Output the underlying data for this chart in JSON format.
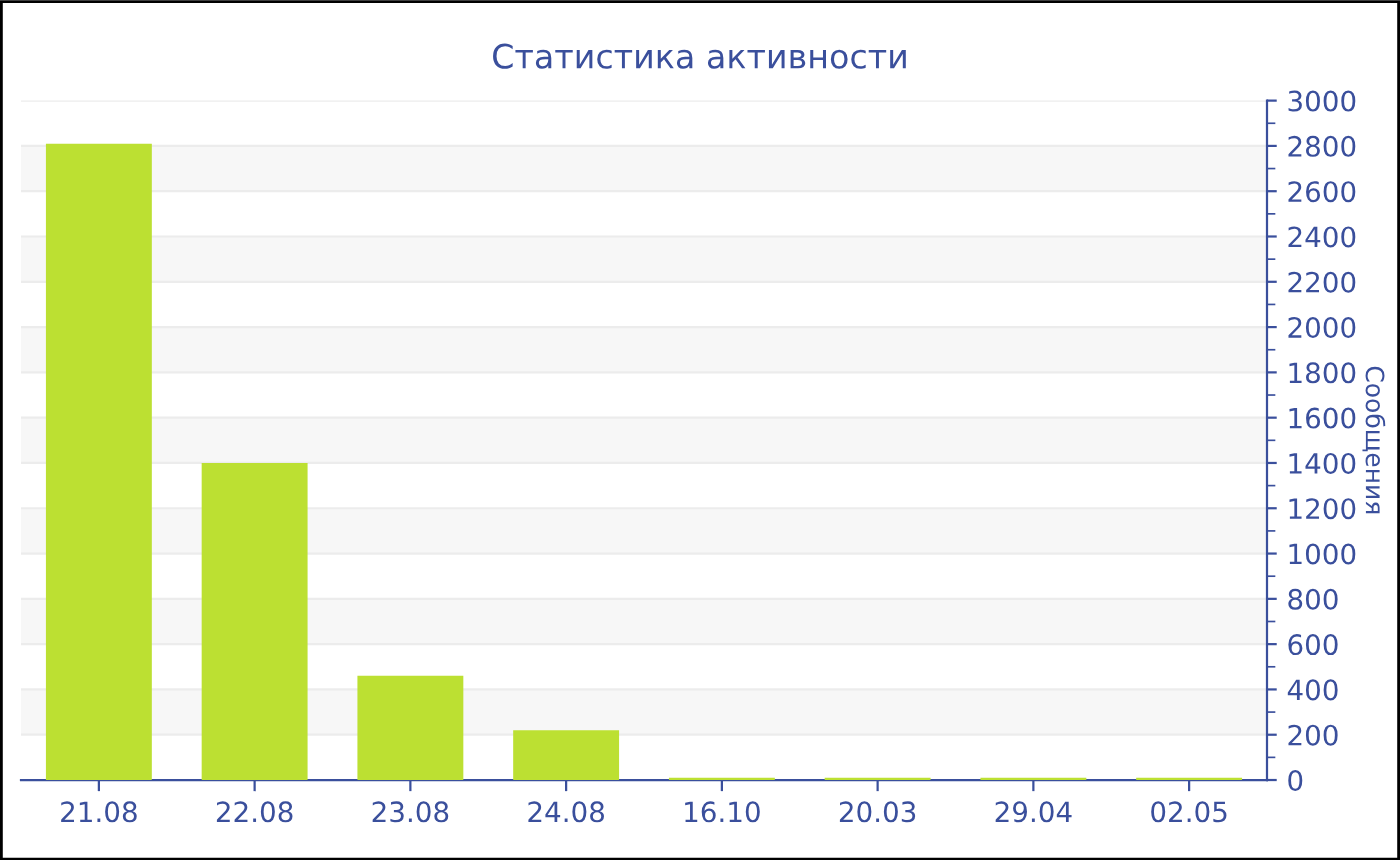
{
  "chart_data": {
    "type": "bar",
    "title": "Статистика активности",
    "ylabel": "Сообщения",
    "categories": [
      "21.08",
      "22.08",
      "23.08",
      "24.08",
      "16.10",
      "20.03",
      "29.04",
      "02.05"
    ],
    "values": [
      2810,
      1400,
      460,
      220,
      10,
      10,
      10,
      10
    ],
    "color": "#bce032",
    "ylim": [
      0,
      3000
    ],
    "yticks": [
      0,
      {
        "value": 100,
        "label": null
      },
      200,
      {
        "value": 300,
        "label": null
      },
      400,
      {
        "value": 500,
        "label": null
      },
      600,
      {
        "value": 700,
        "label": null
      },
      800,
      {
        "value": 900,
        "label": null
      },
      1000,
      {
        "value": 1100,
        "label": null
      },
      1200,
      {
        "value": 1300,
        "label": null
      },
      1400,
      {
        "value": 1500,
        "label": null
      },
      1600,
      {
        "value": 1700,
        "label": null
      },
      1800,
      {
        "value": 1900,
        "label": null
      },
      2000,
      {
        "value": 2100,
        "label": null
      },
      2200,
      {
        "value": 2300,
        "label": null
      },
      2400,
      {
        "value": 2500,
        "label": null
      },
      2600,
      {
        "value": 2700,
        "label": null
      },
      2800,
      {
        "value": 2900,
        "label": null
      },
      3000
    ],
    "grid": "y",
    "legend": false
  }
}
